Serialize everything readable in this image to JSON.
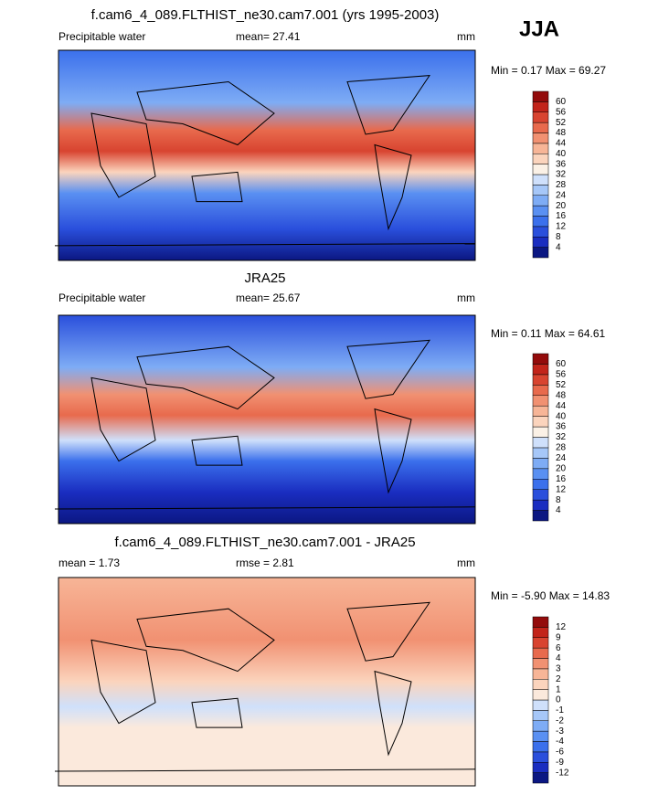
{
  "season": "JJA",
  "panels": [
    {
      "title": "f.cam6_4_089.FLTHIST_ne30.cam7.001 (yrs 1995-2003)",
      "left": "Precipitable water",
      "center": "mean=  27.41",
      "units": "mm",
      "min_max": "Min =  0.17 Max =  69.27",
      "levels": [
        "4",
        "8",
        "12",
        "16",
        "20",
        "24",
        "28",
        "32",
        "36",
        "40",
        "44",
        "48",
        "52",
        "56",
        "60"
      ],
      "colors": [
        "#0b1782",
        "#1a2dc0",
        "#2a4fdc",
        "#3b70ec",
        "#5a90f2",
        "#7eacf5",
        "#a6c7f8",
        "#cfe0fb",
        "#fbf1e6",
        "#fbd4bd",
        "#f7b597",
        "#f19172",
        "#e86a4d",
        "#d84430",
        "#c2241a",
        "#930b0b"
      ]
    },
    {
      "title": "JRA25",
      "left": "Precipitable water",
      "center": "mean=  25.67",
      "units": "mm",
      "min_max": "Min =  0.11 Max =  64.61",
      "levels": [
        "4",
        "8",
        "12",
        "16",
        "20",
        "24",
        "28",
        "32",
        "36",
        "40",
        "44",
        "48",
        "52",
        "56",
        "60"
      ],
      "colors": [
        "#0b1782",
        "#1a2dc0",
        "#2a4fdc",
        "#3b70ec",
        "#5a90f2",
        "#7eacf5",
        "#a6c7f8",
        "#cfe0fb",
        "#fbf1e6",
        "#fbd4bd",
        "#f7b597",
        "#f19172",
        "#e86a4d",
        "#d84430",
        "#c2241a",
        "#930b0b"
      ]
    },
    {
      "title": "f.cam6_4_089.FLTHIST_ne30.cam7.001 - JRA25",
      "left": "mean =  1.73",
      "center": "rmse =  2.81",
      "units": "mm",
      "min_max": "Min = -5.90 Max =  14.83",
      "levels": [
        "-12",
        "-9",
        "-6",
        "-4",
        "-3",
        "-2",
        "-1",
        "0",
        "1",
        "2",
        "3",
        "4",
        "6",
        "9",
        "12"
      ],
      "colors": [
        "#0b1782",
        "#1a2dc0",
        "#2a4fdc",
        "#3b70ec",
        "#5a90f2",
        "#7eacf5",
        "#a6c7f8",
        "#cfe0fb",
        "#fbe9dc",
        "#fbd4bd",
        "#f7b597",
        "#f19172",
        "#e86a4d",
        "#d84430",
        "#c2241a",
        "#930b0b"
      ]
    }
  ]
}
